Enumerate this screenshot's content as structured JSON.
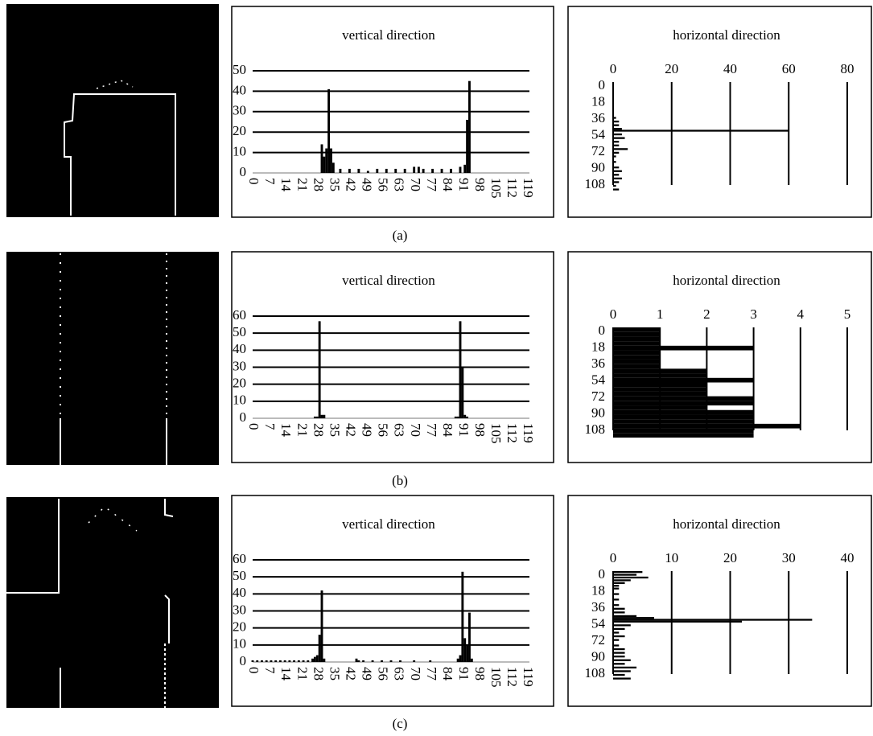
{
  "captions": [
    "(a)",
    "(b)",
    "(c)"
  ],
  "chart_data": [
    {
      "type": "bar",
      "title": "vertical direction",
      "x": [
        30,
        31,
        32,
        33,
        34,
        35,
        38,
        42,
        46,
        50,
        54,
        58,
        62,
        66,
        70,
        72,
        74,
        78,
        82,
        86,
        90,
        92,
        93,
        94
      ],
      "values": [
        14,
        8,
        12,
        41,
        12,
        5,
        2,
        2,
        2,
        1,
        2,
        2,
        2,
        2,
        3,
        3,
        2,
        2,
        2,
        2,
        3,
        4,
        26,
        45
      ],
      "color": "#000000",
      "xlim": [
        0,
        120
      ],
      "xticks": [
        0,
        7,
        14,
        21,
        28,
        35,
        42,
        49,
        56,
        63,
        70,
        77,
        84,
        91,
        98,
        105,
        112,
        119
      ],
      "ylim": [
        0,
        50
      ],
      "yticks": [
        0,
        10,
        20,
        30,
        40,
        50
      ],
      "grid": true
    },
    {
      "type": "barh",
      "title": "horizontal direction",
      "y": [
        38,
        42,
        46,
        50,
        52,
        56,
        60,
        64,
        68,
        72,
        76,
        80,
        86,
        92,
        96,
        100,
        104,
        108,
        112,
        116
      ],
      "values": [
        1,
        2,
        2,
        3,
        60,
        3,
        4,
        2,
        2,
        5,
        2,
        1,
        1,
        2,
        3,
        2,
        3,
        2,
        1,
        2
      ],
      "color": "#000000",
      "xlim": [
        0,
        80
      ],
      "xticks": [
        0,
        20,
        40,
        60,
        80
      ],
      "ylim": [
        0,
        120
      ],
      "yticks": [
        0,
        18,
        36,
        54,
        72,
        90,
        108
      ],
      "grid": true
    },
    {
      "type": "bar",
      "title": "vertical direction",
      "x": [
        27,
        28,
        29,
        30,
        31,
        88,
        89,
        90,
        91,
        92,
        93
      ],
      "values": [
        1,
        1,
        57,
        2,
        2,
        1,
        1,
        57,
        30,
        2,
        1
      ],
      "color": "#000000",
      "xlim": [
        0,
        120
      ],
      "xticks": [
        0,
        7,
        14,
        21,
        28,
        35,
        42,
        49,
        56,
        63,
        70,
        77,
        84,
        91,
        98,
        105,
        112,
        119
      ],
      "ylim": [
        0,
        60
      ],
      "yticks": [
        0,
        10,
        20,
        30,
        40,
        50,
        60
      ],
      "grid": true
    },
    {
      "type": "barh",
      "title": "horizontal direction",
      "y": [
        0,
        5,
        10,
        15,
        20,
        25,
        30,
        35,
        40,
        45,
        50,
        55,
        60,
        65,
        70,
        75,
        80,
        85,
        90,
        95,
        100,
        105,
        110,
        115
      ],
      "values": [
        1,
        1,
        1,
        1,
        3,
        1,
        1,
        1,
        1,
        2,
        2,
        3,
        2,
        2,
        2,
        3,
        3,
        2,
        3,
        3,
        3,
        4,
        3,
        3
      ],
      "color": "#000000",
      "xlim": [
        0,
        5
      ],
      "xticks": [
        0,
        1,
        2,
        3,
        4,
        5
      ],
      "ylim": [
        0,
        120
      ],
      "yticks": [
        0,
        18,
        36,
        54,
        72,
        90,
        108
      ],
      "grid": true
    },
    {
      "type": "bar",
      "title": "vertical direction",
      "x": [
        0,
        2,
        4,
        6,
        8,
        10,
        12,
        14,
        16,
        18,
        20,
        22,
        24,
        26,
        27,
        28,
        29,
        30,
        31,
        45,
        46,
        48,
        52,
        56,
        60,
        64,
        70,
        77,
        89,
        90,
        91,
        92,
        93,
        94,
        95
      ],
      "values": [
        1,
        1,
        1,
        1,
        1,
        1,
        1,
        1,
        1,
        1,
        1,
        1,
        1,
        2,
        3,
        4,
        16,
        42,
        2,
        2,
        1,
        1,
        1,
        1,
        1,
        1,
        1,
        1,
        2,
        4,
        53,
        14,
        10,
        29,
        2
      ],
      "color": "#000000",
      "xlim": [
        0,
        120
      ],
      "xticks": [
        0,
        7,
        14,
        21,
        28,
        35,
        42,
        49,
        56,
        63,
        70,
        77,
        84,
        91,
        98,
        105,
        112,
        119
      ],
      "ylim": [
        0,
        60
      ],
      "yticks": [
        0,
        10,
        20,
        30,
        40,
        50,
        60
      ],
      "grid": true
    },
    {
      "type": "barh",
      "title": "horizontal direction",
      "y": [
        0,
        3,
        6,
        9,
        12,
        15,
        18,
        24,
        30,
        36,
        40,
        44,
        48,
        50,
        52,
        54,
        58,
        62,
        66,
        70,
        74,
        80,
        84,
        88,
        92,
        96,
        100,
        104,
        108,
        112,
        116
      ],
      "values": [
        5,
        4,
        6,
        3,
        2,
        1,
        1,
        1,
        1,
        1,
        2,
        2,
        4,
        7,
        34,
        22,
        3,
        2,
        1,
        2,
        1,
        1,
        2,
        2,
        2,
        3,
        2,
        4,
        3,
        2,
        3
      ],
      "color": "#000000",
      "xlim": [
        0,
        40
      ],
      "xticks": [
        0,
        10,
        20,
        30,
        40
      ],
      "ylim": [
        0,
        120
      ],
      "yticks": [
        0,
        18,
        36,
        54,
        72,
        90,
        108
      ],
      "grid": true
    }
  ]
}
